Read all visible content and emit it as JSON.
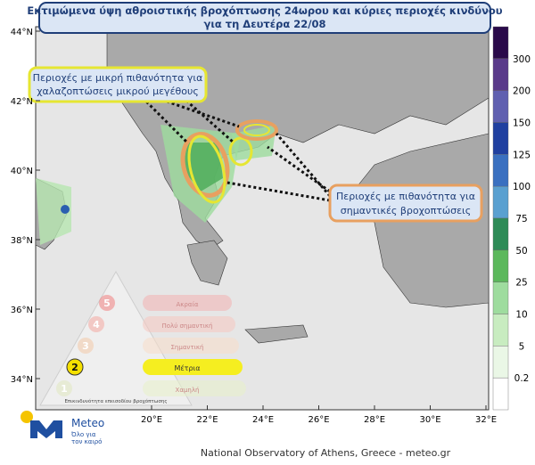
{
  "header": {
    "title_lines": [
      "Εκτιμώμενα ύψη αθροιστικής βροχόπτωσης 24ωρου και κύριες περιοχές κινδύνου",
      "για τη Δευτέρα 22/08"
    ]
  },
  "callouts": [
    {
      "lines": [
        "Περιοχές με μικρή πιθανότητα για",
        "χαλαζοπτώσεις μικρού μεγέθους"
      ]
    },
    {
      "lines": [
        "Περιοχές με πιθανότητα για",
        "σημαντικές βροχοπτώσεις"
      ]
    }
  ],
  "map": {
    "lat_labels": [
      "44°N",
      "42°N",
      "40°N",
      "38°N",
      "36°N",
      "34°N"
    ],
    "lon_labels": [
      "20°E",
      "22°E",
      "24°E",
      "26°E",
      "28°E",
      "30°E",
      "32°E"
    ]
  },
  "colorbar": {
    "labels": [
      "300",
      "200",
      "150",
      "125",
      "100",
      "75",
      "50",
      "25",
      "10",
      "5",
      "0.2"
    ]
  },
  "warning_scale": {
    "levels": [
      {
        "number": "5",
        "label": "Ακραία"
      },
      {
        "number": "4",
        "label": "Πολύ σημαντική"
      },
      {
        "number": "3",
        "label": "Σημαντική"
      },
      {
        "number": "2",
        "label": "Μέτρια"
      },
      {
        "number": "1",
        "label": "Χαμηλή"
      }
    ],
    "caption": "Επικινδυνότητα επεισοδίου βροχόπτωσης"
  },
  "logo": {
    "name": "Meteo",
    "tagline_lines": [
      "Όλο για",
      "τον καιρό"
    ]
  },
  "footer": "National Observatory of Athens, Greece - meteo.gr"
}
